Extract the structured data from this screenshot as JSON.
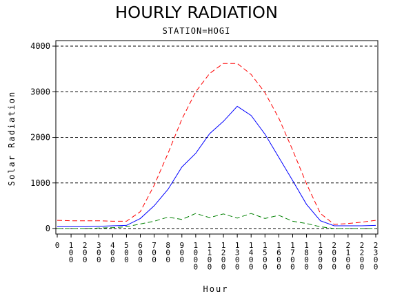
{
  "chart_data": {
    "type": "line",
    "title": "HOURLY RADIATION",
    "subtitle": "STATION=HOGI",
    "xlabel": "Hour",
    "ylabel": "Solar Radiation",
    "x": [
      0,
      100,
      200,
      300,
      400,
      500,
      600,
      700,
      800,
      900,
      1000,
      1100,
      1200,
      1300,
      1400,
      1500,
      1600,
      1700,
      1800,
      1900,
      2000,
      2100,
      2200,
      2300
    ],
    "x_tick_labels": [
      "0",
      "100",
      "200",
      "300",
      "400",
      "500",
      "600",
      "700",
      "800",
      "900",
      "1000",
      "1100",
      "1200",
      "1300",
      "1400",
      "1500",
      "1600",
      "1700",
      "1800",
      "1900",
      "2000",
      "2100",
      "2200",
      "2300"
    ],
    "y_ticks": [
      0,
      1000,
      2000,
      3000,
      4000
    ],
    "y_tick_labels": [
      "0",
      "1000",
      "2000",
      "3000",
      "4000"
    ],
    "ylim": [
      -50,
      4100
    ],
    "grid": "horizontal-dashed",
    "series": [
      {
        "color": "#ff0000",
        "dash": "dashed",
        "values": [
          180,
          170,
          170,
          170,
          160,
          160,
          370,
          950,
          1650,
          2400,
          3000,
          3400,
          3620,
          3620,
          3380,
          2980,
          2420,
          1720,
          980,
          330,
          90,
          110,
          140,
          180
        ]
      },
      {
        "color": "#0000ff",
        "dash": "solid",
        "values": [
          40,
          40,
          40,
          50,
          60,
          70,
          220,
          500,
          860,
          1350,
          1650,
          2080,
          2350,
          2680,
          2480,
          2070,
          1560,
          1050,
          530,
          170,
          60,
          60,
          60,
          70
        ]
      },
      {
        "color": "#008000",
        "dash": "dashed",
        "values": [
          0,
          0,
          0,
          10,
          20,
          40,
          100,
          160,
          250,
          200,
          330,
          240,
          320,
          230,
          330,
          220,
          290,
          160,
          110,
          40,
          0,
          0,
          0,
          0
        ]
      }
    ]
  }
}
